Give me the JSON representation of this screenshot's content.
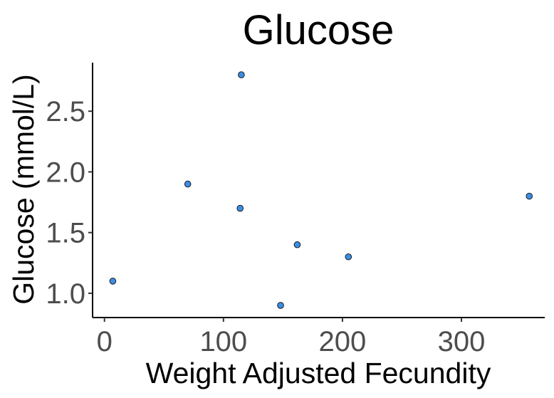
{
  "chart_data": {
    "type": "scatter",
    "title": "Glucose",
    "xlabel": "Weight Adjusted Fecundity",
    "ylabel": "Glucose (mmol/L)",
    "xlim": [
      -10,
      370
    ],
    "ylim": [
      0.8,
      2.9
    ],
    "xticks": [
      0,
      100,
      200,
      300
    ],
    "yticks": [
      1.0,
      1.5,
      2.0,
      2.5
    ],
    "xtick_labels": [
      "0",
      "100",
      "200",
      "300"
    ],
    "ytick_labels": [
      "1.0",
      "1.5",
      "2.0",
      "2.5"
    ],
    "grid": false,
    "point_color": "#3a8ee6",
    "points": [
      {
        "x": 7,
        "y": 1.1
      },
      {
        "x": 70,
        "y": 1.9
      },
      {
        "x": 115,
        "y": 2.8
      },
      {
        "x": 114,
        "y": 1.7
      },
      {
        "x": 162,
        "y": 1.4
      },
      {
        "x": 148,
        "y": 0.9
      },
      {
        "x": 205,
        "y": 1.3
      },
      {
        "x": 357,
        "y": 1.8
      }
    ]
  }
}
